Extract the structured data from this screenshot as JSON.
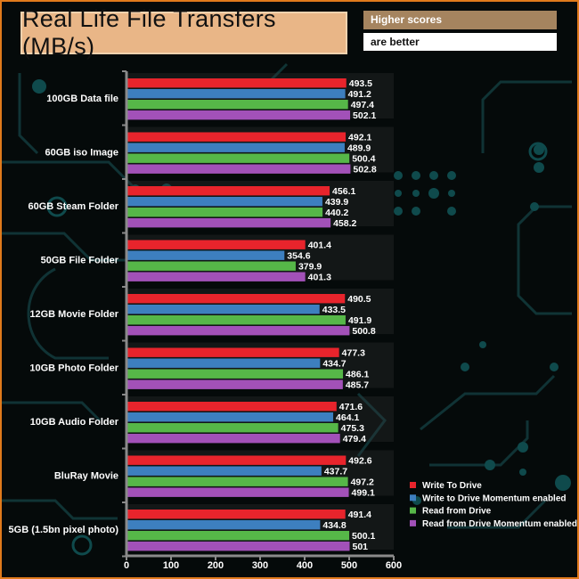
{
  "header": {
    "title": "Real Life File Transfers (MB/s)",
    "note_line1": "Higher scores",
    "note_line2": "are better"
  },
  "chart_data": {
    "type": "bar",
    "orientation": "horizontal",
    "title": "Real Life File Transfers (MB/s)",
    "categories": [
      "100GB Data file",
      "60GB iso Image",
      "60GB Steam Folder",
      "50GB File Folder",
      "12GB Movie Folder",
      "10GB Photo Folder",
      "10GB Audio Folder",
      "BluRay Movie",
      "5GB (1.5bn pixel photo)"
    ],
    "series": [
      {
        "name": "Write To  Drive",
        "color": "#e8242c",
        "values": [
          493.5,
          492.1,
          456.1,
          401.4,
          490.5,
          477.3,
          471.6,
          492.6,
          491.4
        ]
      },
      {
        "name": "Write to Drive Momentum enabled",
        "color": "#3d7fbf",
        "values": [
          491.2,
          489.9,
          439.9,
          354.6,
          433.5,
          434.7,
          464.1,
          437.7,
          434.8
        ]
      },
      {
        "name": "Read from Drive",
        "color": "#56b748",
        "values": [
          497.4,
          500.4,
          440.2,
          379.9,
          491.9,
          486.1,
          475.3,
          497.2,
          500.1
        ]
      },
      {
        "name": "Read from Drive Momentum enabled",
        "color": "#a251b8",
        "values": [
          502.1,
          502.8,
          458.2,
          401.3,
          500.8,
          485.7,
          479.4,
          499.1,
          501
        ]
      }
    ],
    "xlim": [
      0,
      600
    ],
    "xticks": [
      0,
      100,
      200,
      300,
      400,
      500,
      600
    ],
    "legend_position": "bottom-right"
  }
}
